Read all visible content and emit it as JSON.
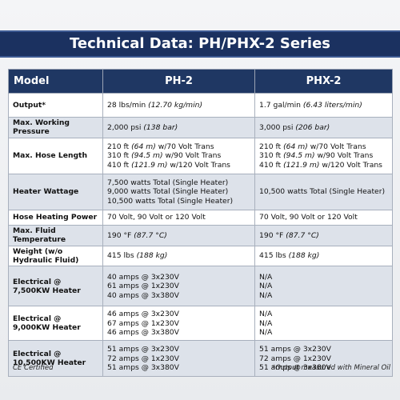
{
  "header": {
    "title": "Technical Data: PH/PHX-2 Series"
  },
  "table": {
    "columns": [
      "Model",
      "PH-2",
      "PHX-2"
    ],
    "rows": [
      {
        "label": "Output*",
        "cells": [
          [
            [
              "28 lbs/min ",
              "(12.70 kg/min)"
            ]
          ],
          [
            [
              "1.7 gal/min ",
              "(6.43 liters/min)"
            ]
          ]
        ]
      },
      {
        "label": "Max. Working Pressure",
        "cells": [
          [
            [
              "2,000 psi ",
              "(138 bar)"
            ]
          ],
          [
            [
              "3,000 psi ",
              "(206 bar)"
            ]
          ]
        ]
      },
      {
        "label": "Max. Hose Length",
        "cells": [
          [
            [
              "210 ft ",
              "(64 m)",
              " w/70 Volt Trans"
            ],
            [
              "310 ft ",
              "(94.5 m)",
              " w/90 Volt Trans"
            ],
            [
              "410 ft ",
              "(121.9 m)",
              " w/120 Volt Trans"
            ]
          ],
          [
            [
              "210 ft ",
              "(64 m)",
              " w/70 Volt Trans"
            ],
            [
              "310 ft ",
              "(94.5 m)",
              " w/90 Volt Trans"
            ],
            [
              "410 ft ",
              "(121.9 m)",
              " w/120 Volt Trans"
            ]
          ]
        ]
      },
      {
        "label": "Heater Wattage",
        "cells": [
          [
            [
              "7,500 watts Total (Single Heater)"
            ],
            [
              "9,000 watts Total (Single Heater)"
            ],
            [
              "10,500 watts Total (Single Heater)"
            ]
          ],
          [
            [
              "10,500 watts Total (Single Heater)"
            ]
          ]
        ]
      },
      {
        "label": "Hose Heating Power",
        "cells": [
          [
            [
              "70 Volt, 90 Volt or 120 Volt"
            ]
          ],
          [
            [
              "70 Volt, 90 Volt or 120 Volt"
            ]
          ]
        ]
      },
      {
        "label": "Max. Fluid Temperature",
        "cells": [
          [
            [
              "190 °F ",
              "(87.7 °C)"
            ]
          ],
          [
            [
              "190 °F ",
              "(87.7 °C)"
            ]
          ]
        ]
      },
      {
        "label": "Weight (w/o Hydraulic Fluid)",
        "cells": [
          [
            [
              "415 lbs ",
              "(188 kg)"
            ]
          ],
          [
            [
              "415 lbs ",
              "(188 kg)"
            ]
          ]
        ]
      },
      {
        "label": "Electrical @ 7,500KW Heater",
        "cells": [
          [
            [
              "40 amps @ 3x230V"
            ],
            [
              "61 amps @ 1x230V"
            ],
            [
              "40 amps @ 3x380V"
            ]
          ],
          [
            [
              "N/A"
            ],
            [
              "N/A"
            ],
            [
              "N/A"
            ]
          ]
        ]
      },
      {
        "label": "Electrical @ 9,000KW Heater",
        "cells": [
          [
            [
              "46 amps @ 3x230V"
            ],
            [
              "67 amps @ 1x230V"
            ],
            [
              "46 amps @ 3x380V"
            ]
          ],
          [
            [
              "N/A"
            ],
            [
              "N/A"
            ],
            [
              "N/A"
            ]
          ]
        ]
      },
      {
        "label": "Electrical @ 10,500KW Heater",
        "cells": [
          [
            [
              "51 amps @ 3x230V"
            ],
            [
              "72 amps @ 1x230V"
            ],
            [
              "51 amps @ 3x380V"
            ]
          ],
          [
            [
              "51 amps @ 3x230V"
            ],
            [
              "72 amps @ 1x230V"
            ],
            [
              "51 amps @ 3x380V"
            ]
          ]
        ]
      }
    ]
  },
  "footer": {
    "left": "CE Certified",
    "right": "*Output measured with Mineral Oil"
  }
}
